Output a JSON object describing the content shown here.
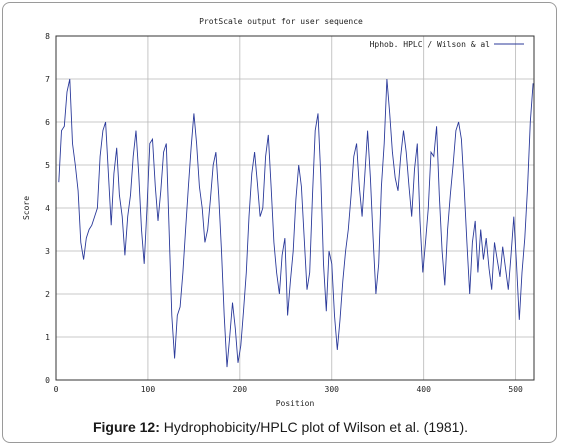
{
  "caption": {
    "label": "Figure 12:",
    "text": " Hydrophobicity/HPLC plot of Wilson et al. (1981)."
  },
  "chart_data": {
    "type": "line",
    "title": "ProtScale output for user sequence",
    "xlabel": "Position",
    "ylabel": "Score",
    "xlim": [
      0,
      520
    ],
    "ylim": [
      0,
      8
    ],
    "xticks": [
      0,
      100,
      200,
      300,
      400,
      500
    ],
    "yticks": [
      0,
      1,
      2,
      3,
      4,
      5,
      6,
      7,
      8
    ],
    "grid": true,
    "legend_position": "top-right",
    "colors": {
      "series": "#2b3a9a",
      "grid": "#b8b8b8",
      "axis": "#333333"
    },
    "series": [
      {
        "name": "Hphob. HPLC / Wilson & al",
        "x": [
          3,
          6,
          9,
          12,
          15,
          18,
          21,
          24,
          27,
          30,
          33,
          36,
          39,
          42,
          45,
          48,
          51,
          54,
          57,
          60,
          63,
          66,
          69,
          72,
          75,
          78,
          81,
          84,
          87,
          90,
          93,
          96,
          99,
          102,
          105,
          108,
          111,
          114,
          117,
          120,
          123,
          126,
          129,
          132,
          135,
          138,
          141,
          144,
          147,
          150,
          153,
          156,
          159,
          162,
          165,
          168,
          171,
          174,
          177,
          180,
          183,
          186,
          189,
          192,
          195,
          198,
          201,
          204,
          207,
          210,
          213,
          216,
          219,
          222,
          225,
          228,
          231,
          234,
          237,
          240,
          243,
          246,
          249,
          252,
          255,
          258,
          261,
          264,
          267,
          270,
          273,
          276,
          279,
          282,
          285,
          288,
          291,
          294,
          297,
          300,
          303,
          306,
          309,
          312,
          315,
          318,
          321,
          324,
          327,
          330,
          333,
          336,
          339,
          342,
          345,
          348,
          351,
          354,
          357,
          360,
          363,
          366,
          369,
          372,
          375,
          378,
          381,
          384,
          387,
          390,
          393,
          396,
          399,
          402,
          405,
          408,
          411,
          414,
          417,
          420,
          423,
          426,
          429,
          432,
          435,
          438,
          441,
          444,
          447,
          450,
          453,
          456,
          459,
          462,
          465,
          468,
          471,
          474,
          477,
          480,
          483,
          486,
          489,
          492,
          495,
          498,
          501,
          504,
          507,
          510,
          513,
          516,
          519
        ],
        "values": [
          4.6,
          5.8,
          5.9,
          6.7,
          7.0,
          5.5,
          5.0,
          4.4,
          3.2,
          2.8,
          3.3,
          3.5,
          3.6,
          3.8,
          4.0,
          5.2,
          5.8,
          6.0,
          4.8,
          3.6,
          4.8,
          5.4,
          4.3,
          3.8,
          2.9,
          3.8,
          4.3,
          5.2,
          5.8,
          4.8,
          3.5,
          2.7,
          4.0,
          5.5,
          5.6,
          4.5,
          3.7,
          4.4,
          5.3,
          5.5,
          3.5,
          1.5,
          0.5,
          1.5,
          1.7,
          2.5,
          3.5,
          4.5,
          5.4,
          6.2,
          5.5,
          4.5,
          4.0,
          3.2,
          3.5,
          4.2,
          5.0,
          5.3,
          4.3,
          3.0,
          1.5,
          0.3,
          1.0,
          1.8,
          1.2,
          0.4,
          0.8,
          1.6,
          2.5,
          3.8,
          4.8,
          5.3,
          4.6,
          3.8,
          4.0,
          5.2,
          5.7,
          4.5,
          3.2,
          2.5,
          2.0,
          2.9,
          3.3,
          1.5,
          2.3,
          3.0,
          4.2,
          5.0,
          4.5,
          3.3,
          2.1,
          2.5,
          4.3,
          5.8,
          6.2,
          4.8,
          2.7,
          1.6,
          3.0,
          2.7,
          1.5,
          0.7,
          1.4,
          2.3,
          3.0,
          3.5,
          4.3,
          5.2,
          5.5,
          4.5,
          3.8,
          4.8,
          5.8,
          4.7,
          3.3,
          2.0,
          2.7,
          4.5,
          5.5,
          7.0,
          6.2,
          5.3,
          4.7,
          4.4,
          5.2,
          5.8,
          5.3,
          4.5,
          3.8,
          4.9,
          5.5,
          3.7,
          2.5,
          3.2,
          4.0,
          5.3,
          5.2,
          5.9,
          4.3,
          3.0,
          2.2,
          3.5,
          4.3,
          5.0,
          5.8,
          6.0,
          5.6,
          4.5,
          3.2,
          2.0,
          3.2,
          3.7,
          2.5,
          3.5,
          2.8,
          3.3,
          2.6,
          2.1,
          3.2,
          2.8,
          2.4,
          3.1,
          2.6,
          2.1,
          2.9,
          3.8,
          2.7,
          1.4,
          2.5,
          3.3,
          4.5,
          6.0,
          6.9
        ]
      }
    ]
  }
}
